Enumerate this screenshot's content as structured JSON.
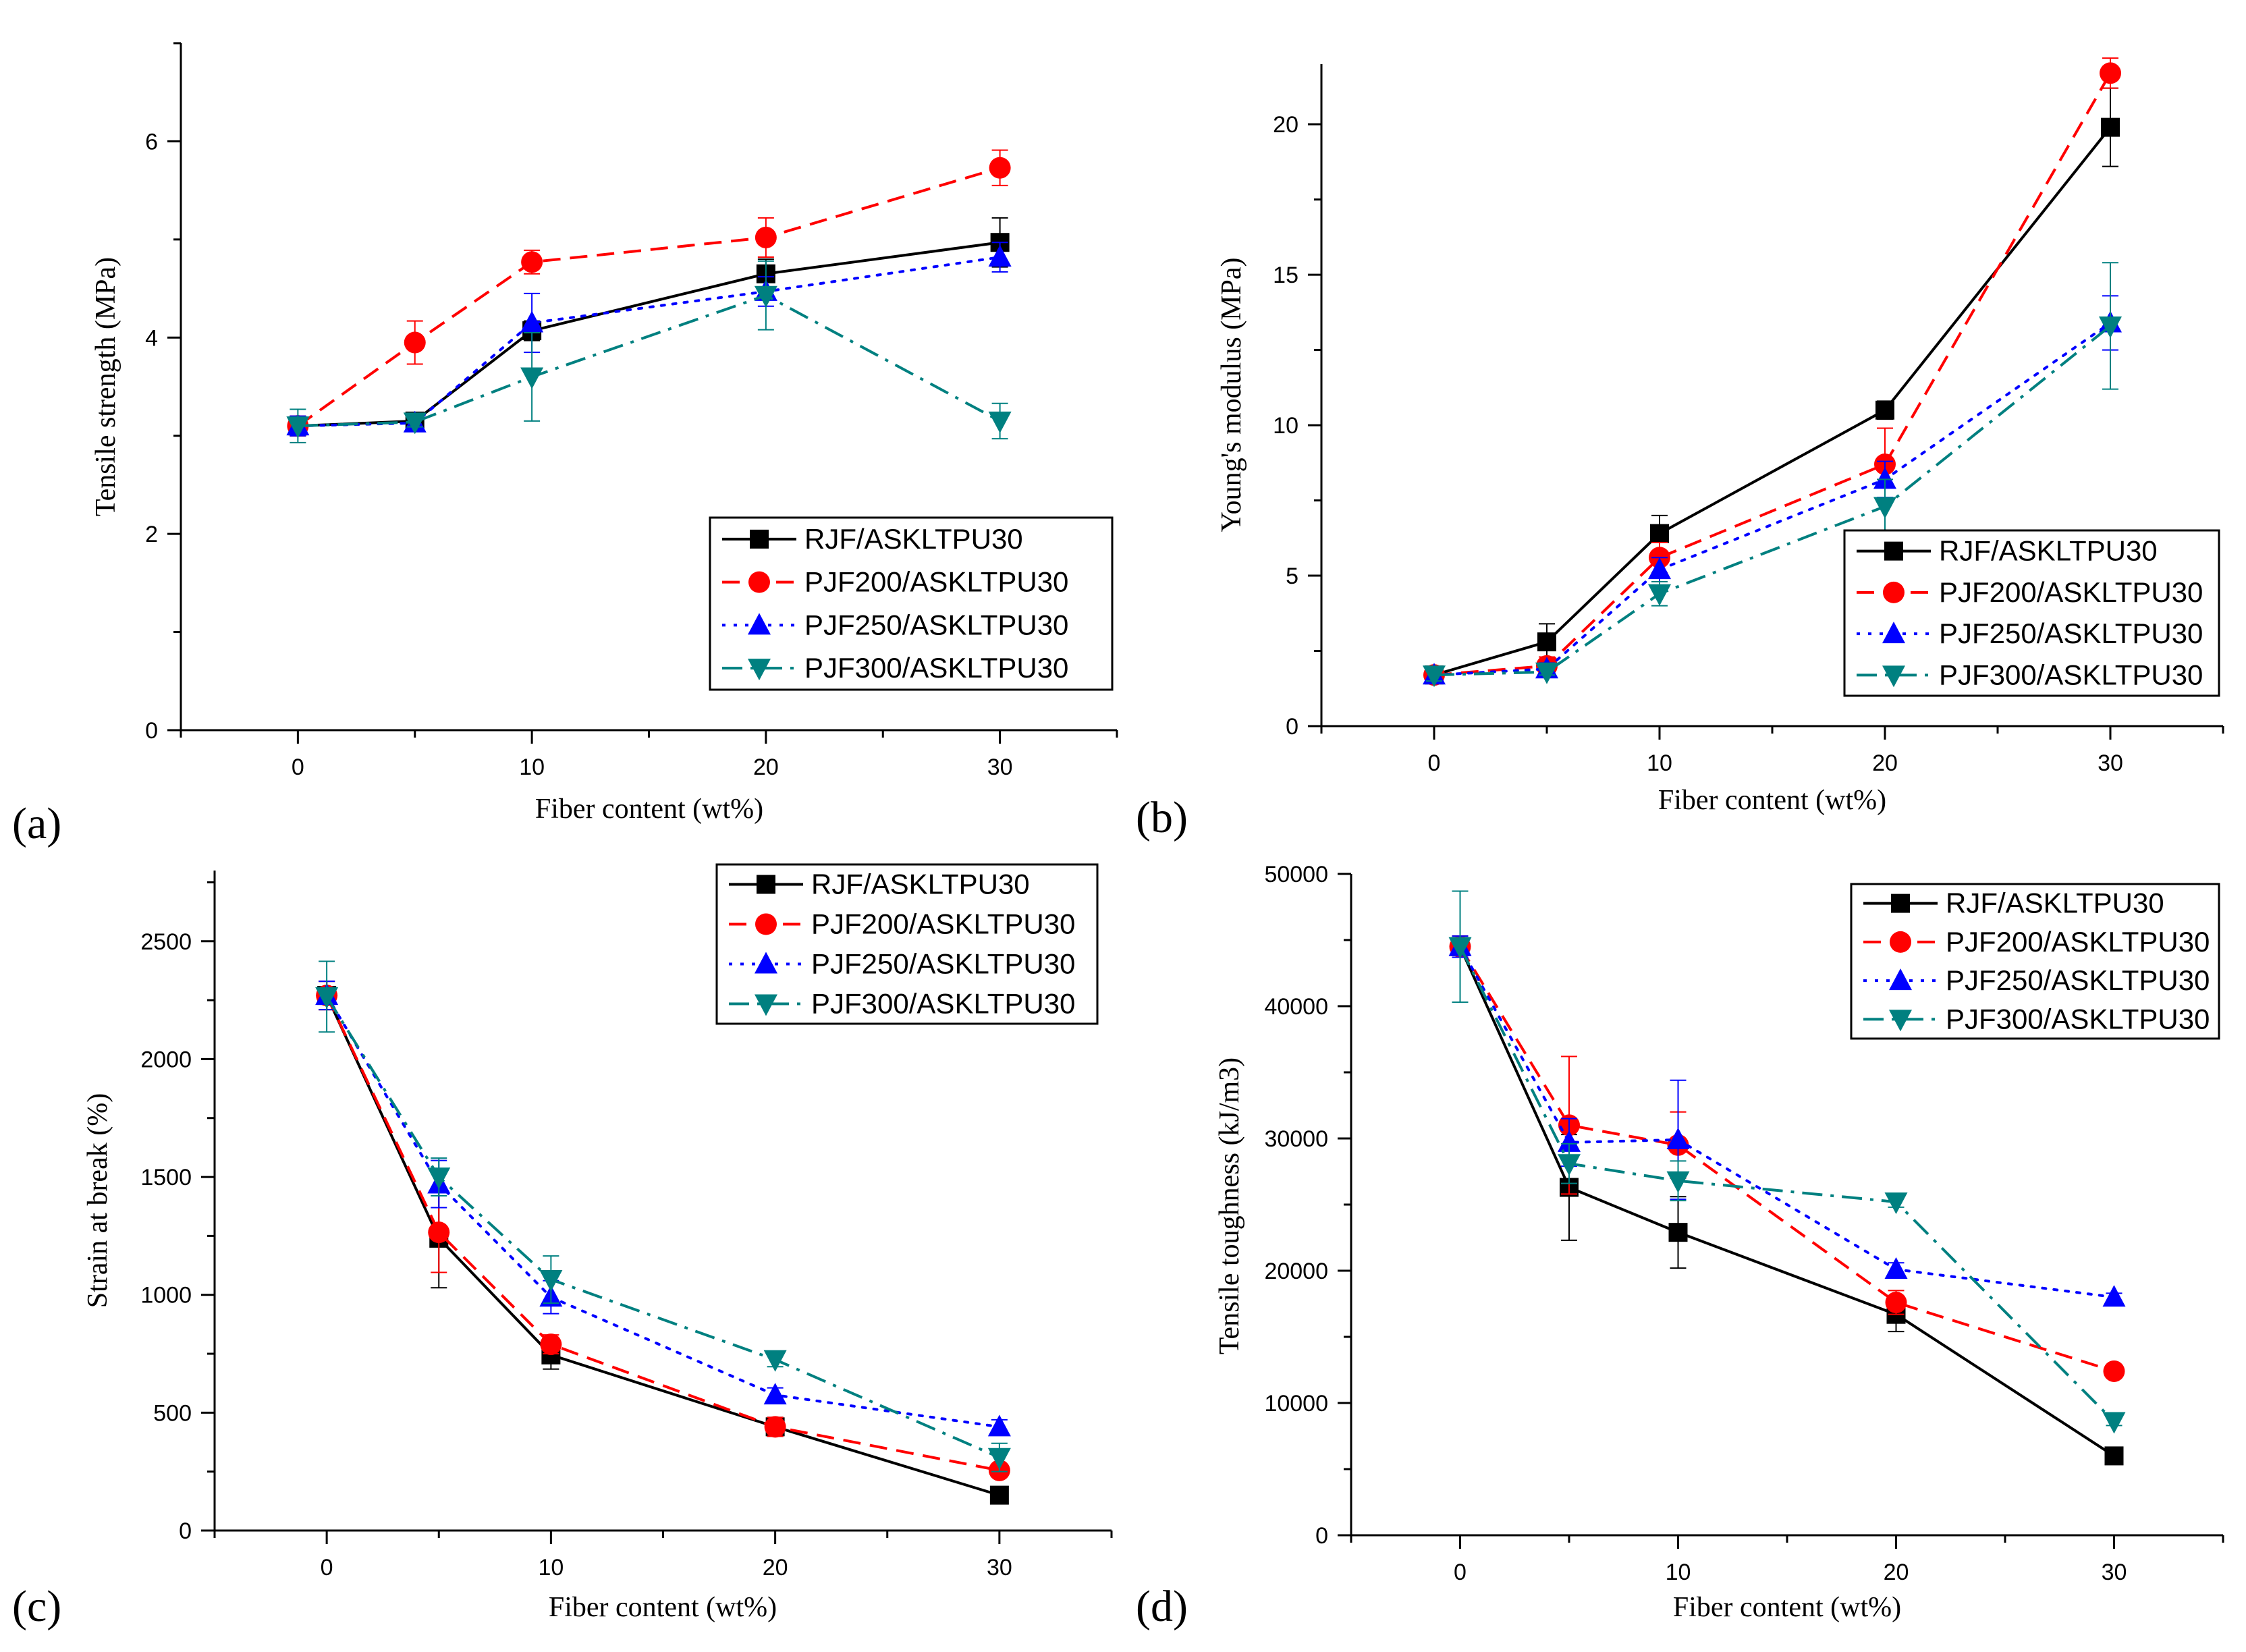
{
  "figure_title": "",
  "panels": [
    {
      "label": "(a)",
      "ylabel": "Tensile strength (MPa)",
      "xlabel": "Fiber content (wt%)"
    },
    {
      "label": "(b)",
      "ylabel": "Young's modulus (MPa)",
      "xlabel": "Fiber content (wt%)"
    },
    {
      "label": "(c)",
      "ylabel": "Strain at break (%)",
      "xlabel": "Fiber content (wt%)"
    },
    {
      "label": "(d)",
      "ylabel": "Tensile toughness (kJ/m3)",
      "xlabel": "Fiber content (wt%)"
    }
  ],
  "legend": {
    "entries": [
      {
        "name": "RJF/ASKLTPU30",
        "color": "#000000",
        "marker": "square",
        "dash": "solid"
      },
      {
        "name": "PJF200/ASKLTPU30",
        "color": "#ff0000",
        "marker": "circle",
        "dash": "dash"
      },
      {
        "name": "PJF250/ASKLTPU30",
        "color": "#0000ff",
        "marker": "triangle-up",
        "dash": "dot"
      },
      {
        "name": "PJF300/ASKLTPU30",
        "color": "#008080",
        "marker": "triangle-down",
        "dash": "dashdot"
      }
    ]
  },
  "chart_data": [
    {
      "type": "line",
      "title": "(a)",
      "xlabel": "Fiber content (wt%)",
      "ylabel": "Tensile strength (MPa)",
      "xlim": [
        -5,
        35
      ],
      "ylim": [
        0,
        7
      ],
      "xticks": [
        0,
        10,
        20,
        30
      ],
      "yticks": [
        0,
        2,
        4,
        6
      ],
      "legend_position": "lower-right",
      "x": [
        0,
        5,
        10,
        20,
        30
      ],
      "series": [
        {
          "name": "RJF/ASKLTPU30",
          "values": [
            3.1,
            3.15,
            4.07,
            4.65,
            4.97
          ],
          "errors": [
            0.1,
            0.05,
            0.1,
            0.15,
            0.25
          ]
        },
        {
          "name": "PJF200/ASKLTPU30",
          "values": [
            3.1,
            3.95,
            4.77,
            5.02,
            5.73
          ],
          "errors": [
            0.1,
            0.22,
            0.12,
            0.2,
            0.18
          ]
        },
        {
          "name": "PJF250/ASKLTPU30",
          "values": [
            3.1,
            3.13,
            4.15,
            4.47,
            4.82
          ],
          "errors": [
            0.1,
            0.05,
            0.3,
            0.15,
            0.15
          ]
        },
        {
          "name": "PJF300/ASKLTPU30",
          "values": [
            3.1,
            3.14,
            3.6,
            4.43,
            3.15
          ],
          "errors": [
            0.17,
            0.05,
            0.45,
            0.35,
            0.18
          ]
        }
      ]
    },
    {
      "type": "line",
      "title": "(b)",
      "xlabel": "Fiber content (wt%)",
      "ylabel": "Young's modulus (MPa)",
      "xlim": [
        -5,
        35
      ],
      "ylim": [
        0,
        22
      ],
      "xticks": [
        0,
        10,
        20,
        30
      ],
      "yticks": [
        0,
        5,
        10,
        15,
        20
      ],
      "legend_position": "lower-right",
      "x": [
        0,
        5,
        10,
        20,
        30
      ],
      "series": [
        {
          "name": "RJF/ASKLTPU30",
          "values": [
            1.7,
            2.8,
            6.4,
            10.5,
            19.9
          ],
          "errors": [
            0.2,
            0.6,
            0.6,
            0.3,
            1.3
          ]
        },
        {
          "name": "PJF200/ASKLTPU30",
          "values": [
            1.7,
            2.0,
            5.6,
            8.7,
            21.7
          ],
          "errors": [
            0.2,
            0.3,
            0.5,
            1.2,
            0.5
          ]
        },
        {
          "name": "PJF250/ASKLTPU30",
          "values": [
            1.7,
            1.9,
            5.2,
            8.2,
            13.4
          ],
          "errors": [
            0.2,
            0.2,
            0.4,
            0.6,
            0.9
          ]
        },
        {
          "name": "PJF300/ASKLTPU30",
          "values": [
            1.7,
            1.8,
            4.4,
            7.3,
            13.3
          ],
          "errors": [
            0.2,
            0.1,
            0.4,
            0.9,
            2.1
          ]
        }
      ]
    },
    {
      "type": "line",
      "title": "(c)",
      "xlabel": "Fiber content (wt%)",
      "ylabel": "Strain at break (%)",
      "xlim": [
        -5,
        35
      ],
      "ylim": [
        0,
        2800
      ],
      "xticks": [
        0,
        10,
        20,
        30
      ],
      "yticks": [
        0,
        500,
        1000,
        1500,
        2000,
        2500
      ],
      "legend_position": "top-right",
      "x": [
        0,
        5,
        10,
        20,
        30
      ],
      "series": [
        {
          "name": "RJF/ASKLTPU30",
          "values": [
            2270,
            1240,
            745,
            440,
            150
          ],
          "errors": [
            60,
            210,
            60,
            40,
            20
          ]
        },
        {
          "name": "PJF200/ASKLTPU30",
          "values": [
            2270,
            1265,
            790,
            440,
            255
          ],
          "errors": [
            60,
            170,
            40,
            40,
            20
          ]
        },
        {
          "name": "PJF250/ASKLTPU30",
          "values": [
            2270,
            1470,
            990,
            575,
            440
          ],
          "errors": [
            60,
            100,
            70,
            30,
            30
          ]
        },
        {
          "name": "PJF300/ASKLTPU30",
          "values": [
            2265,
            1500,
            1065,
            725,
            310
          ],
          "errors": [
            150,
            80,
            100,
            30,
            60
          ]
        }
      ]
    },
    {
      "type": "line",
      "title": "(d)",
      "xlabel": "Fiber content (wt%)",
      "ylabel": "Tensile toughness (kJ/m3)",
      "xlim": [
        -5,
        35
      ],
      "ylim": [
        0,
        50000
      ],
      "xticks": [
        0,
        10,
        20,
        30
      ],
      "yticks": [
        0,
        10000,
        20000,
        30000,
        40000,
        50000
      ],
      "legend_position": "top-right",
      "x": [
        0,
        5,
        10,
        20,
        30
      ],
      "series": [
        {
          "name": "RJF/ASKLTPU30",
          "values": [
            44500,
            26300,
            22900,
            16700,
            6000
          ],
          "errors": [
            800,
            4000,
            2700,
            1300,
            300
          ]
        },
        {
          "name": "PJF200/ASKLTPU30",
          "values": [
            44500,
            31000,
            29500,
            17600,
            12400
          ],
          "errors": [
            800,
            5200,
            2500,
            900,
            300
          ]
        },
        {
          "name": "PJF250/ASKLTPU30",
          "values": [
            44500,
            29700,
            29900,
            20100,
            18000
          ],
          "errors": [
            800,
            1800,
            4500,
            500,
            300
          ]
        },
        {
          "name": "PJF300/ASKLTPU30",
          "values": [
            44500,
            28100,
            26800,
            25200,
            8600
          ],
          "errors": [
            4200,
            1500,
            1500,
            400,
            300
          ]
        }
      ]
    }
  ]
}
